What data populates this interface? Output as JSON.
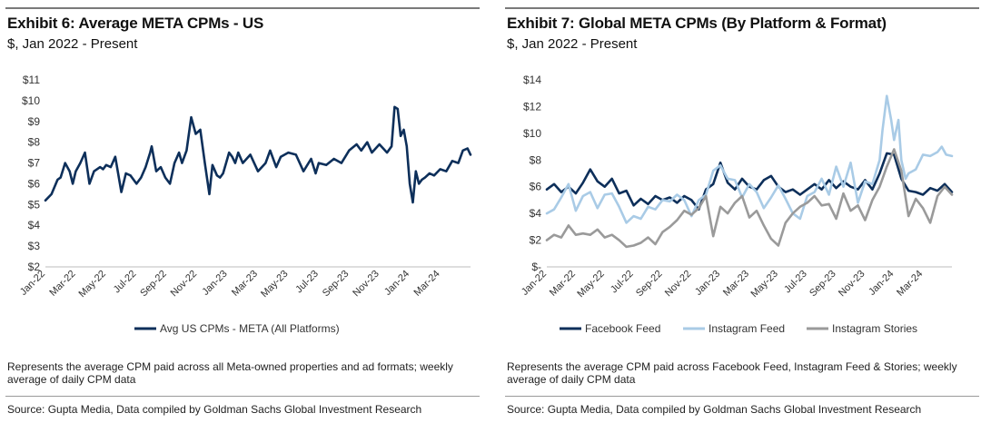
{
  "exhibits": [
    {
      "title": "Exhibit 6: Average META CPMs - US",
      "subtitle": "$, Jan 2022 - Present",
      "note": "Represents the average CPM paid across all Meta-owned properties and ad formats; weekly average of daily CPM data",
      "source": "Source: Gupta Media, Data compiled by Goldman Sachs Global Investment Research"
    },
    {
      "title": "Exhibit 7: Global META CPMs (By Platform & Format)",
      "subtitle": "$, Jan 2022 - Present",
      "note": "Represents the average CPM paid across Facebook Feed, Instagram Feed & Stories; weekly average of daily CPM data",
      "source": "Source: Gupta Media, Data compiled by Goldman Sachs Global Investment Research"
    }
  ],
  "chart_data": [
    {
      "type": "line",
      "title": "Exhibit 6: Average META CPMs - US",
      "subtitle": "$, Jan 2022 - Present",
      "ylim": [
        2,
        11
      ],
      "yticks": [
        2,
        3,
        4,
        5,
        6,
        7,
        8,
        9,
        10,
        11
      ],
      "ytick_labels": [
        "$2",
        "$3",
        "$4",
        "$5",
        "$6",
        "$7",
        "$8",
        "$9",
        "$10",
        "$11"
      ],
      "x_tick_labels": [
        "Jan-22",
        "Mar-22",
        "May-22",
        "Jul-22",
        "Sep-22",
        "Nov-22",
        "Jan-23",
        "Mar-23",
        "May-23",
        "Jul-23",
        "Sep-23",
        "Nov-23",
        "Jan-24",
        "Mar-24"
      ],
      "x_range_months": [
        0,
        28
      ],
      "grid": false,
      "legend_position": "bottom",
      "series": [
        {
          "name": "Avg US CPMs - META (All Platforms)",
          "color": "#0d2f5a",
          "x_months": [
            0,
            0.4,
            0.8,
            1.0,
            1.3,
            1.6,
            1.8,
            2.0,
            2.3,
            2.6,
            2.9,
            3.2,
            3.4,
            3.6,
            3.8,
            4.0,
            4.3,
            4.6,
            5.0,
            5.3,
            5.6,
            6.0,
            6.3,
            6.6,
            6.9,
            7.0,
            7.3,
            7.6,
            7.9,
            8.2,
            8.5,
            8.8,
            9.0,
            9.3,
            9.6,
            9.9,
            10.2,
            10.5,
            10.8,
            11.0,
            11.3,
            11.5,
            11.7,
            11.9,
            12.1,
            12.3,
            12.5,
            12.7,
            13.0,
            13.5,
            14.0,
            14.5,
            14.8,
            15.2,
            15.5,
            16.0,
            16.5,
            17.0,
            17.5,
            17.8,
            18.0,
            18.5,
            19.0,
            19.5,
            20.0,
            20.5,
            20.8,
            21.2,
            21.5,
            22.0,
            22.5,
            22.8,
            23.0,
            23.2,
            23.4,
            23.6,
            23.8,
            24.0,
            24.2,
            24.4,
            24.6,
            24.8,
            25.0,
            25.3,
            25.6,
            26.0,
            26.4,
            26.8,
            27.2,
            27.5,
            27.8,
            28.0
          ],
          "values": [
            5.2,
            5.5,
            6.2,
            6.3,
            7.0,
            6.6,
            6.0,
            6.6,
            7.0,
            7.5,
            6.0,
            6.6,
            6.7,
            6.8,
            6.7,
            6.9,
            6.8,
            7.3,
            5.6,
            6.5,
            6.4,
            6.0,
            6.3,
            6.8,
            7.5,
            7.8,
            6.6,
            6.8,
            6.3,
            6.0,
            7.0,
            7.5,
            7.0,
            7.6,
            9.2,
            8.4,
            8.6,
            7.0,
            5.5,
            6.9,
            6.4,
            6.3,
            6.5,
            7.0,
            7.5,
            7.3,
            7.0,
            7.5,
            7.0,
            7.4,
            6.6,
            7.0,
            7.6,
            6.8,
            7.3,
            7.5,
            7.4,
            6.6,
            7.2,
            6.5,
            7.0,
            6.9,
            7.2,
            7.0,
            7.6,
            7.9,
            7.6,
            8.0,
            7.5,
            7.9,
            7.5,
            7.8,
            9.7,
            9.6,
            8.3,
            8.6,
            7.8,
            6.0,
            5.1,
            6.6,
            6.0,
            6.2,
            6.3,
            6.5,
            6.4,
            6.7,
            6.6,
            7.1,
            7.0,
            7.6,
            7.7,
            7.4
          ]
        }
      ]
    },
    {
      "type": "line",
      "title": "Exhibit 7: Global META CPMs (By Platform & Format)",
      "subtitle": "$, Jan 2022 - Present",
      "ylim": [
        0,
        14
      ],
      "yticks": [
        0,
        2,
        4,
        6,
        8,
        10,
        12,
        14
      ],
      "ytick_labels": [
        "$-",
        "$2",
        "$4",
        "$6",
        "$8",
        "$10",
        "$12",
        "$14"
      ],
      "x_tick_labels": [
        "Jan-22",
        "Mar-22",
        "May-22",
        "Jul-22",
        "Sep-22",
        "Nov-22",
        "Jan-23",
        "Mar-23",
        "May-23",
        "Jul-23",
        "Sep-23",
        "Nov-23",
        "Jan-24",
        "Mar-24"
      ],
      "x_range_months": [
        0,
        28
      ],
      "grid": false,
      "legend_position": "bottom",
      "series": [
        {
          "name": "Facebook Feed",
          "color": "#0d2f5a",
          "x_months": [
            0,
            0.5,
            1.0,
            1.5,
            2.0,
            2.5,
            3.0,
            3.5,
            4.0,
            4.5,
            5.0,
            5.5,
            6.0,
            6.5,
            7.0,
            7.5,
            8.0,
            8.5,
            9.0,
            9.5,
            10.0,
            10.5,
            11.0,
            11.5,
            12.0,
            12.5,
            13.0,
            13.5,
            14.0,
            14.5,
            15.0,
            15.5,
            16.0,
            16.5,
            17.0,
            17.5,
            18.0,
            18.5,
            19.0,
            19.5,
            20.0,
            20.5,
            21.0,
            21.5,
            22.0,
            22.5,
            23.0,
            23.5,
            24.0,
            24.5,
            25.0,
            25.5,
            26.0,
            26.5,
            27.0,
            27.5,
            28.0
          ],
          "values": [
            5.8,
            6.2,
            5.6,
            6.0,
            5.5,
            6.3,
            7.3,
            6.4,
            6.0,
            6.6,
            5.5,
            5.7,
            4.6,
            5.1,
            4.7,
            5.3,
            5.0,
            5.2,
            4.8,
            5.3,
            5.0,
            4.3,
            5.8,
            6.2,
            7.8,
            6.3,
            5.8,
            6.6,
            6.0,
            5.8,
            6.5,
            6.8,
            6.0,
            5.6,
            5.8,
            5.4,
            5.8,
            6.2,
            5.8,
            6.5,
            5.9,
            6.4,
            6.0,
            5.8,
            6.5,
            5.8,
            7.0,
            8.5,
            8.4,
            6.6,
            5.7,
            5.6,
            5.4,
            5.9,
            5.7,
            6.2,
            5.6
          ]
        },
        {
          "name": "Instagram Feed",
          "color": "#a9cbe6",
          "x_months": [
            0,
            0.5,
            1.0,
            1.5,
            2.0,
            2.5,
            3.0,
            3.5,
            4.0,
            4.5,
            5.0,
            5.5,
            6.0,
            6.5,
            7.0,
            7.5,
            8.0,
            8.5,
            9.0,
            9.5,
            10.0,
            10.5,
            11.0,
            11.5,
            12.0,
            12.5,
            13.0,
            13.5,
            14.0,
            14.5,
            15.0,
            15.5,
            16.0,
            16.5,
            17.0,
            17.5,
            18.0,
            18.5,
            19.0,
            19.5,
            20.0,
            20.5,
            21.0,
            21.5,
            22.0,
            22.5,
            23.0,
            23.2,
            23.5,
            23.8,
            24.0,
            24.3,
            24.5,
            24.8,
            25.0,
            25.5,
            26.0,
            26.5,
            27.0,
            27.3,
            27.6,
            28.0
          ],
          "values": [
            4.0,
            4.3,
            5.2,
            6.2,
            4.2,
            5.3,
            5.6,
            4.4,
            5.4,
            5.5,
            4.5,
            3.3,
            3.8,
            3.6,
            4.5,
            4.3,
            5.0,
            4.9,
            5.4,
            5.0,
            3.8,
            5.0,
            5.4,
            7.2,
            7.6,
            6.6,
            6.5,
            5.2,
            6.2,
            5.6,
            4.4,
            5.2,
            6.1,
            5.1,
            4.0,
            3.6,
            5.3,
            5.6,
            6.6,
            5.4,
            7.5,
            6.0,
            7.8,
            4.8,
            6.4,
            6.2,
            8.0,
            10.2,
            12.8,
            11.0,
            9.5,
            11.0,
            8.0,
            6.6,
            7.0,
            7.3,
            8.4,
            8.3,
            8.6,
            9.0,
            8.4,
            8.3
          ]
        },
        {
          "name": "Instagram Stories",
          "color": "#9a9a9a",
          "x_months": [
            0,
            0.5,
            1.0,
            1.5,
            2.0,
            2.5,
            3.0,
            3.5,
            4.0,
            4.5,
            5.0,
            5.5,
            6.0,
            6.5,
            7.0,
            7.5,
            8.0,
            8.5,
            9.0,
            9.5,
            10.0,
            10.5,
            11.0,
            11.5,
            12.0,
            12.5,
            13.0,
            13.5,
            14.0,
            14.5,
            15.0,
            15.5,
            16.0,
            16.5,
            17.0,
            17.5,
            18.0,
            18.5,
            19.0,
            19.5,
            20.0,
            20.5,
            21.0,
            21.5,
            22.0,
            22.5,
            23.0,
            23.5,
            24.0,
            24.5,
            25.0,
            25.5,
            26.0,
            26.5,
            27.0,
            27.5,
            28.0
          ],
          "values": [
            2.0,
            2.4,
            2.2,
            3.1,
            2.4,
            2.5,
            2.4,
            2.8,
            2.2,
            2.4,
            2.0,
            1.5,
            1.6,
            1.8,
            2.2,
            1.7,
            2.6,
            3.0,
            3.5,
            4.2,
            3.9,
            4.4,
            5.3,
            2.3,
            4.5,
            4.0,
            4.8,
            5.3,
            3.7,
            4.2,
            3.1,
            2.1,
            1.6,
            3.3,
            4.0,
            4.5,
            4.8,
            5.3,
            4.6,
            4.7,
            3.6,
            5.5,
            4.2,
            4.6,
            3.5,
            5.0,
            6.0,
            7.5,
            8.8,
            7.2,
            3.8,
            5.1,
            4.4,
            3.3,
            5.3,
            6.0,
            5.4
          ]
        }
      ]
    }
  ]
}
